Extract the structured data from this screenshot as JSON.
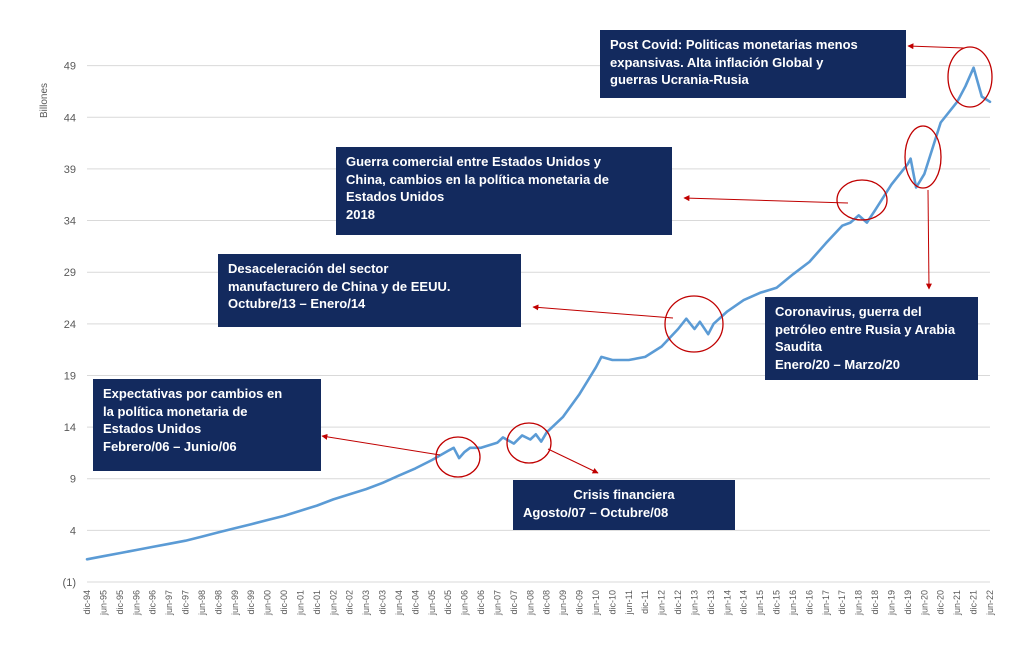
{
  "chart_data": {
    "type": "line",
    "ylabel": "Billones",
    "ylim": [
      -1,
      51
    ],
    "yticks": [
      {
        "value": -1,
        "label": "(1)"
      },
      {
        "value": 4,
        "label": "4"
      },
      {
        "value": 9,
        "label": "9"
      },
      {
        "value": 14,
        "label": "14"
      },
      {
        "value": 19,
        "label": "19"
      },
      {
        "value": 24,
        "label": "24"
      },
      {
        "value": 29,
        "label": "29"
      },
      {
        "value": 34,
        "label": "34"
      },
      {
        "value": 39,
        "label": "39"
      },
      {
        "value": 44,
        "label": "44"
      },
      {
        "value": 49,
        "label": "49"
      }
    ],
    "grid": true,
    "legend": "none",
    "line_color": "#5b9bd5",
    "x_tick_labels": [
      "dic-94",
      "jun-95",
      "dic-95",
      "jun-96",
      "dic-96",
      "jun-97",
      "dic-97",
      "jun-98",
      "dic-98",
      "jun-99",
      "dic-99",
      "jun-00",
      "dic-00",
      "jun-01",
      "dic-01",
      "jun-02",
      "dic-02",
      "jun-03",
      "dic-03",
      "jun-04",
      "dic-04",
      "jun-05",
      "dic-05",
      "jun-06",
      "dic-06",
      "jun-07",
      "dic-07",
      "jun-08",
      "dic-08",
      "jun-09",
      "dic-09",
      "jun-10",
      "dic-10",
      "jun-11",
      "dic-11",
      "jun-12",
      "dic-12",
      "jun-13",
      "dic-13",
      "jun-14",
      "dic-14",
      "jun-15",
      "dic-15",
      "jun-16",
      "dic-16",
      "jun-17",
      "dic-17",
      "jun-18",
      "dic-18",
      "jun-19",
      "dic-19",
      "jun-20",
      "dic-20",
      "jun-21",
      "dic-21",
      "jun-22"
    ],
    "series": [
      {
        "x": [
          "dic-94",
          "jun-95",
          "dic-95",
          "jun-96",
          "dic-96",
          "jun-97",
          "dic-97",
          "jun-98",
          "dic-98",
          "jun-99",
          "dic-99",
          "jun-00",
          "dic-00",
          "jun-01",
          "dic-01",
          "jun-02",
          "dic-02",
          "jun-03",
          "dic-03",
          "jun-04",
          "dic-04",
          "jun-05",
          "dic-05",
          "feb-06",
          "abr-06",
          "jun-06",
          "ago-06",
          "dic-06",
          "jun-07",
          "ago-07",
          "dic-07",
          "mar-08",
          "jun-08",
          "ago-08",
          "oct-08",
          "dic-08",
          "jun-09",
          "dic-09",
          "jun-10",
          "ago-10",
          "dic-10",
          "jun-11",
          "dic-11",
          "jun-12",
          "dic-12",
          "mar-13",
          "jun-13",
          "ago-13",
          "nov-13",
          "ene-14",
          "jun-14",
          "dic-14",
          "jun-15",
          "dic-15",
          "jun-16",
          "dic-16",
          "jun-17",
          "dic-17",
          "mar-18",
          "jun-18",
          "sep-18",
          "dic-18",
          "jun-19",
          "dic-19",
          "ene-20",
          "mar-20",
          "jun-20",
          "dic-20",
          "jun-21",
          "sep-21",
          "dic-21",
          "mar-22",
          "jun-22"
        ],
        "values": [
          1.2,
          1.5,
          1.8,
          2.1,
          2.4,
          2.7,
          3.0,
          3.4,
          3.8,
          4.2,
          4.6,
          5.0,
          5.4,
          5.9,
          6.4,
          7.0,
          7.5,
          8.0,
          8.6,
          9.3,
          10.0,
          10.8,
          11.7,
          12.0,
          11.0,
          11.6,
          12.0,
          12.0,
          12.5,
          13.0,
          12.4,
          13.2,
          12.8,
          13.3,
          12.6,
          13.5,
          15.0,
          17.2,
          19.8,
          20.8,
          20.5,
          20.5,
          20.8,
          21.8,
          23.5,
          24.5,
          23.5,
          24.2,
          23.0,
          24.0,
          25.2,
          26.3,
          27.0,
          27.5,
          28.8,
          30.0,
          31.8,
          33.5,
          33.8,
          34.5,
          33.8,
          35.0,
          37.5,
          39.5,
          40.0,
          37.2,
          38.5,
          43.5,
          45.5,
          47.0,
          48.8,
          46.0,
          45.5
        ]
      }
    ],
    "annotations": [
      {
        "lines": [
          "Post Covid: Politicas monetarias menos",
          "expansivas. Alta inflación Global y",
          "guerras Ucrania-Rusia"
        ]
      },
      {
        "lines": [
          "Guerra comercial entre Estados Unidos y",
          "China, cambios en la política monetaria de",
          "Estados Unidos",
          " 2018"
        ]
      },
      {
        "lines": [
          "Desaceleración del sector",
          "manufacturero de China y de EEUU.",
          "Octubre/13 – Enero/14"
        ]
      },
      {
        "lines": [
          "Coronavirus, guerra del",
          "petróleo entre Rusia y Arabia",
          "Saudita",
          "Enero/20 – Marzo/20"
        ]
      },
      {
        "lines": [
          "Expectativas por cambios en",
          "la política monetaria de",
          "Estados Unidos",
          "Febrero/06 – Junio/06"
        ]
      },
      {
        "lines": [
          "Crisis financiera",
          "Agosto/07 – Octubre/08"
        ]
      }
    ],
    "box_color": "#132a5e",
    "marker_color": "#c00000"
  }
}
